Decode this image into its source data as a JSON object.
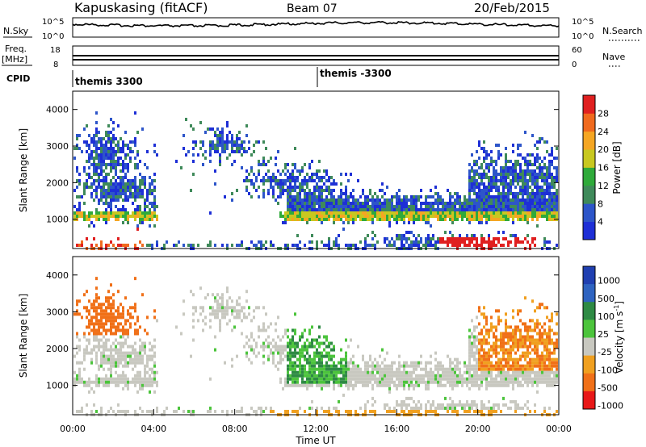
{
  "header": {
    "station": "Kapuskasing (fitACF)",
    "beam": "Beam 07",
    "date": "20/Feb/2015"
  },
  "noise_panel": {
    "left_label": "N.Sky",
    "right_label": "N.Search",
    "left_ticks": [
      "10^5",
      "10^0"
    ],
    "right_ticks": [
      "10^5",
      "10^0"
    ]
  },
  "freq_panel": {
    "left_label_1": "Freq.",
    "left_label_2": "[MHz]",
    "right_label": "Nave",
    "left_ticks": [
      "18",
      "8"
    ],
    "right_ticks": [
      "60",
      "0"
    ]
  },
  "cpid": {
    "label": "CPID",
    "segments": [
      {
        "name": "themis 3300",
        "start_hour": 0
      },
      {
        "name": "themis -3300",
        "start_hour": 12.1
      }
    ]
  },
  "colors": {
    "power": [
      "#1e2fd6",
      "#2d55c9",
      "#3f8a5a",
      "#2faa3a",
      "#c8c820",
      "#f5a623",
      "#f06a1e",
      "#e02020"
    ],
    "velocity": [
      "#1f3fb0",
      "#2e63c0",
      "#2e8a44",
      "#4cc43c",
      "#c8c8c0",
      "#f0a020",
      "#f07018",
      "#e81818"
    ]
  },
  "chart_data": [
    {
      "type": "heatmap",
      "name": "power",
      "ylabel": "Slant Range [km]",
      "xlabel": "",
      "x_range_hours": [
        0,
        24
      ],
      "ylim": [
        200,
        4500
      ],
      "y_ticks": [
        1000,
        2000,
        3000,
        4000
      ],
      "colorbar_label": "Power [dB]",
      "colorbar_ticks": [
        "4",
        "8",
        "12",
        "16",
        "20",
        "24",
        "28"
      ],
      "colorbar_range": [
        0,
        32
      ]
    },
    {
      "type": "heatmap",
      "name": "velocity",
      "ylabel": "Slant Range [km]",
      "xlabel": "Time UT",
      "x_tick_labels": [
        "00:00",
        "04:00",
        "08:00",
        "12:00",
        "16:00",
        "20:00",
        "00:00"
      ],
      "x_range_hours": [
        0,
        24
      ],
      "ylim": [
        200,
        4500
      ],
      "y_ticks": [
        1000,
        2000,
        3000,
        4000
      ],
      "colorbar_label": "Velocity [m s",
      "colorbar_label_sup": "-1",
      "colorbar_label_end": "]",
      "colorbar_ticks": [
        "1000",
        "500",
        "100",
        "25",
        "-25",
        "-100",
        "-500",
        "-1000"
      ]
    }
  ]
}
